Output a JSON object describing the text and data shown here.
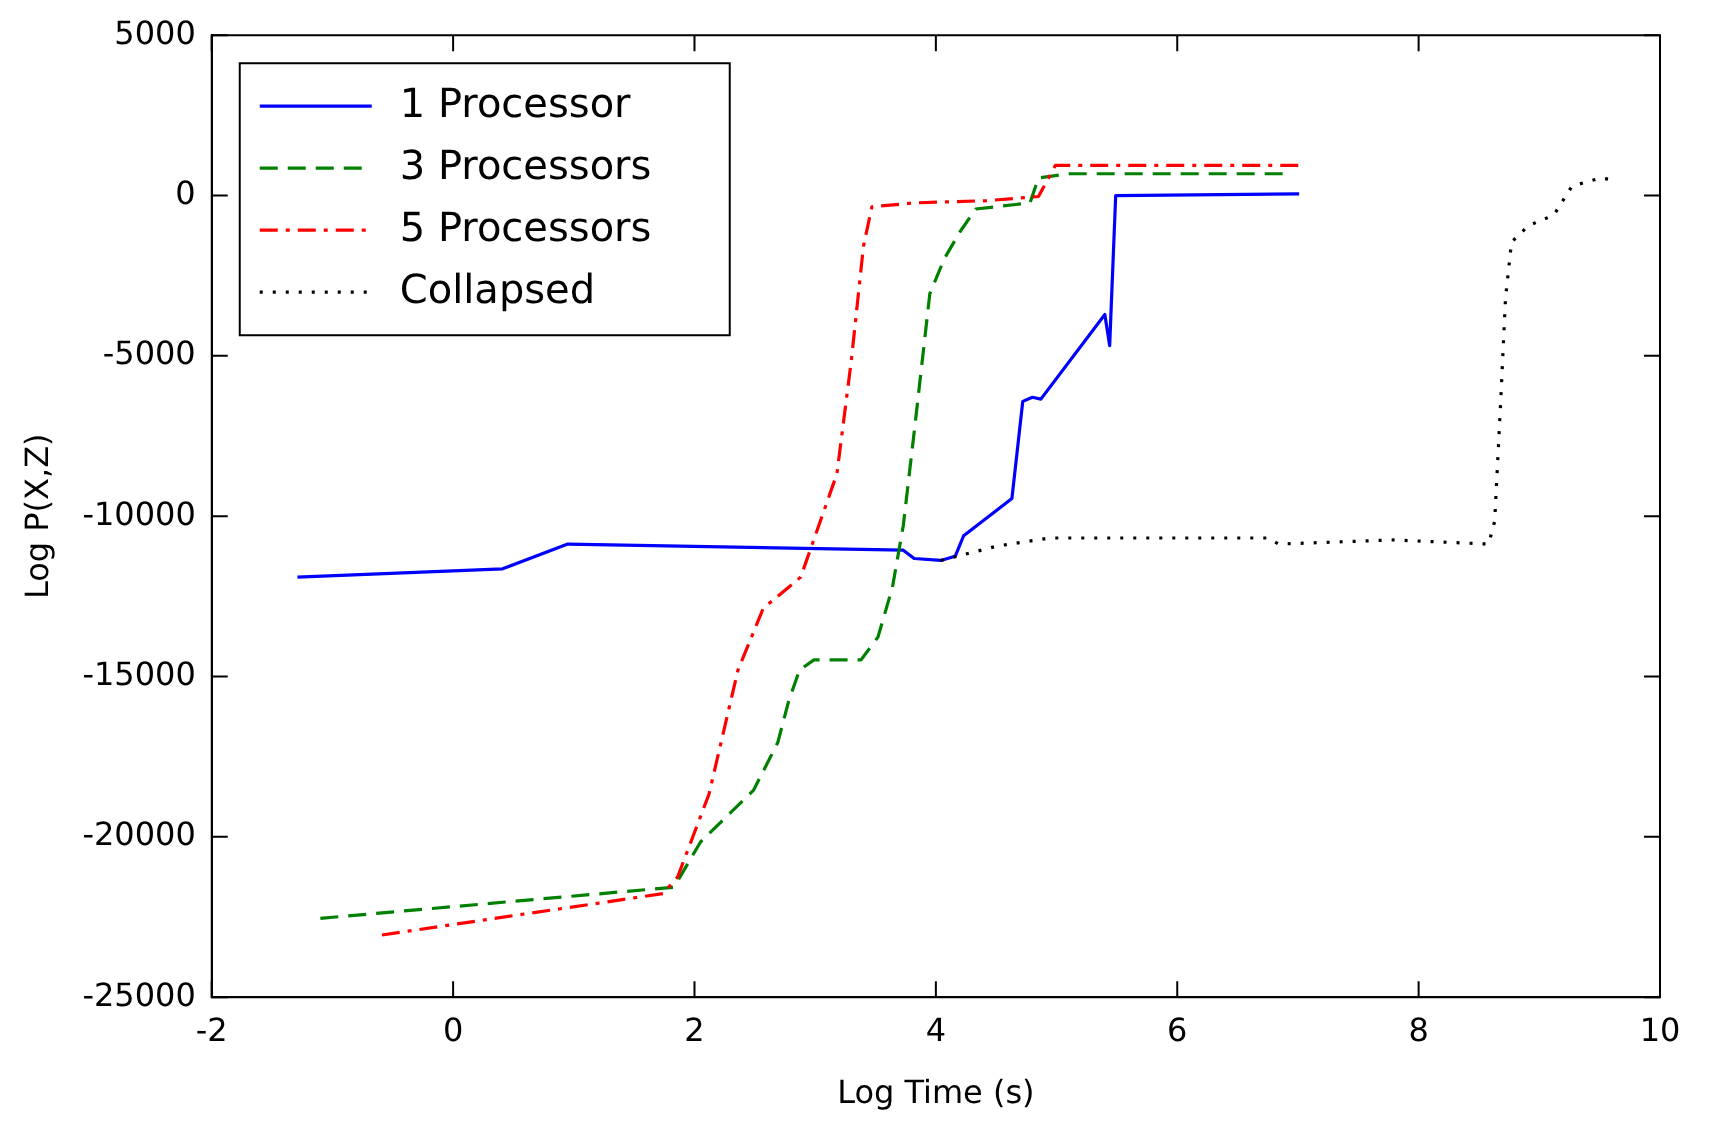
{
  "chart_data": {
    "type": "line",
    "xlabel": "Log Time (s)",
    "ylabel": "Log P(X,Z)",
    "xlim": [
      -2,
      10
    ],
    "xticks": [
      -2,
      0,
      2,
      4,
      6,
      8,
      10
    ],
    "ylim": [
      -25000,
      5000
    ],
    "yticks": [
      -25000,
      -20000,
      -15000,
      -10000,
      -5000,
      0,
      5000
    ],
    "grid": false,
    "legend": "top left",
    "marker": "none",
    "series": [
      {
        "name": "1 Processor",
        "color": "#0000ff",
        "line_style": "solid",
        "x": [
          -1.29,
          0.41,
          0.95,
          3.73,
          3.82,
          4.04,
          4.16,
          4.23,
          4.63,
          4.72,
          4.8,
          4.87,
          5.4,
          5.44,
          5.49,
          7.01
        ],
        "values": [
          -11900,
          -11640,
          -10870,
          -11060,
          -11320,
          -11380,
          -11250,
          -10610,
          -9450,
          -6420,
          -6290,
          -6350,
          -3710,
          -4680,
          0,
          50
        ]
      },
      {
        "name": "3 Processors",
        "color": "#008000",
        "line_style": "dashed",
        "x": [
          -1.1,
          1.83,
          2.05,
          2.49,
          2.69,
          2.78,
          2.87,
          2.99,
          3.38,
          3.52,
          3.64,
          3.73,
          3.83,
          3.95,
          4.07,
          4.2,
          4.33,
          4.78,
          4.85,
          5.11,
          6.92
        ],
        "values": [
          -22540,
          -21570,
          -20160,
          -18540,
          -17060,
          -15770,
          -14800,
          -14480,
          -14480,
          -13770,
          -12220,
          -10290,
          -7060,
          -3060,
          -1970,
          -1130,
          -420,
          -230,
          550,
          680,
          680
        ]
      },
      {
        "name": "5 Processors",
        "color": "#ff0000",
        "line_style": "dashdot",
        "x": [
          -0.59,
          1.74,
          1.86,
          2.12,
          2.36,
          2.57,
          2.88,
          3.18,
          3.3,
          3.4,
          3.47,
          3.82,
          4.42,
          4.85,
          4.99,
          7.01
        ],
        "values": [
          -23060,
          -21770,
          -21250,
          -18670,
          -14800,
          -12870,
          -11900,
          -8680,
          -5130,
          -1580,
          -350,
          -230,
          -160,
          -30,
          940,
          940
        ]
      },
      {
        "name": "Collapsed",
        "color": "#000000",
        "line_style": "dotted",
        "x": [
          4.04,
          4.51,
          4.94,
          5.71,
          6.75,
          6.84,
          7.79,
          8.58,
          8.63,
          8.68,
          8.72,
          8.77,
          8.91,
          9.12,
          9.27,
          9.51,
          9.62
        ],
        "values": [
          -11380,
          -10930,
          -10680,
          -10680,
          -10680,
          -10870,
          -10740,
          -10870,
          -10160,
          -6420,
          -3190,
          -1450,
          -940,
          -610,
          290,
          550,
          480
        ]
      }
    ]
  }
}
